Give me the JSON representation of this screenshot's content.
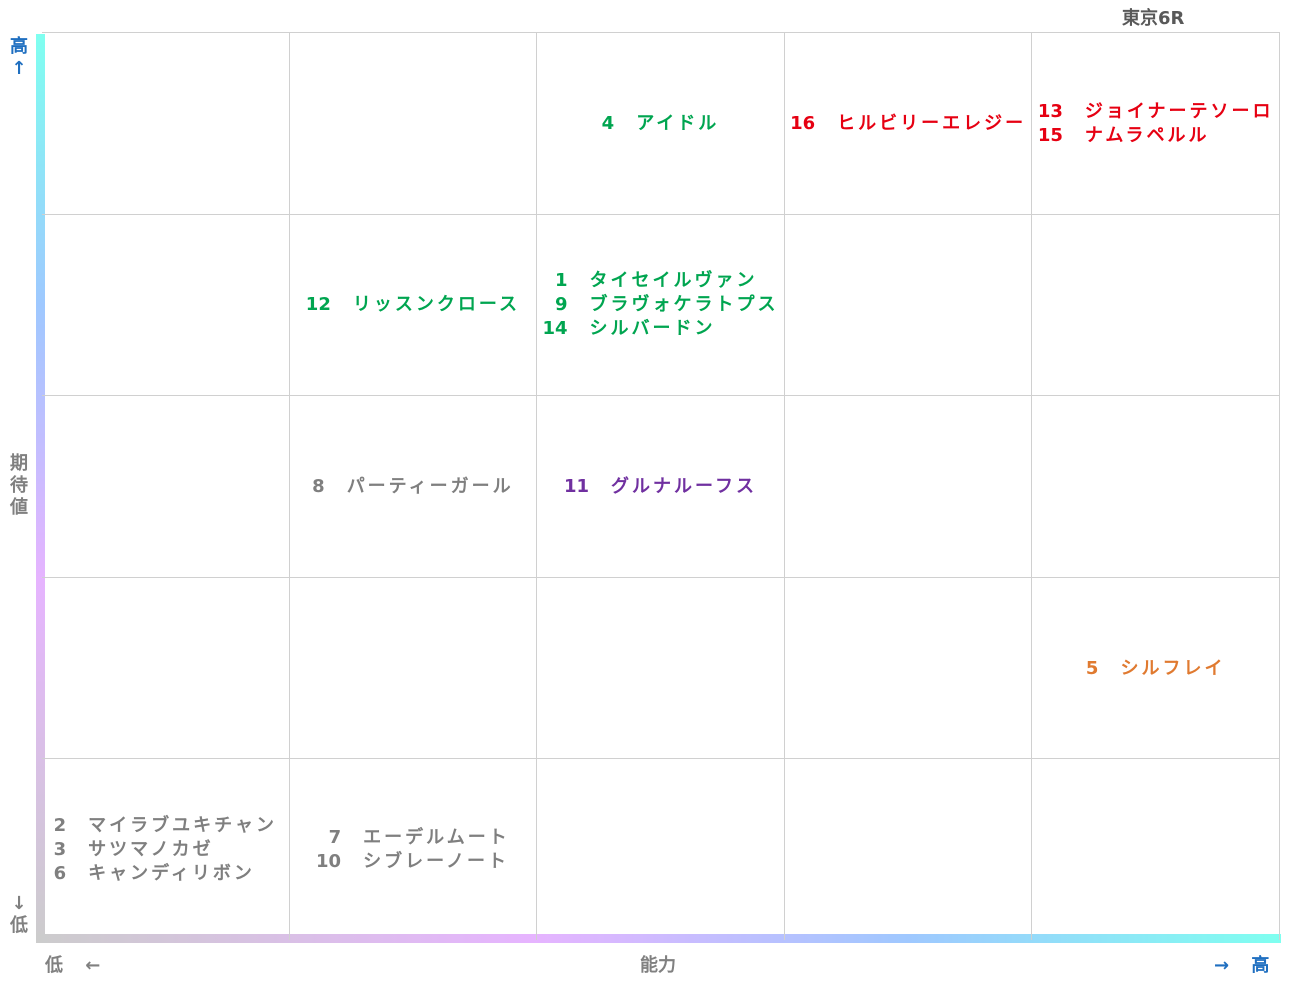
{
  "title": "東京6R",
  "y_axis": {
    "top": "高↑",
    "label": "期待値",
    "bottom": "↓低"
  },
  "x_axis": {
    "left": "低 ←",
    "label": "能力",
    "right": "→ 高"
  },
  "grid": [
    [
      {
        "entries": []
      },
      {
        "entries": []
      },
      {
        "color": "#00a550",
        "entries": [
          {
            "number": 4,
            "name": "アイドル"
          }
        ]
      },
      {
        "color": "#e60012",
        "entries": [
          {
            "number": 16,
            "name": "ヒルビリーエレジー"
          }
        ]
      },
      {
        "color": "#e60012",
        "entries": [
          {
            "number": 13,
            "name": "ジョイナーテソーロ"
          },
          {
            "number": 15,
            "name": "ナムラペルル"
          }
        ]
      }
    ],
    [
      {
        "entries": []
      },
      {
        "color": "#00a550",
        "entries": [
          {
            "number": 12,
            "name": "リッスンクロース"
          }
        ]
      },
      {
        "color": "#00a550",
        "entries": [
          {
            "number": 1,
            "name": "タイセイルヴァン"
          },
          {
            "number": 9,
            "name": "ブラヴォケラトプス"
          },
          {
            "number": 14,
            "name": "シルバードン"
          }
        ]
      },
      {
        "entries": []
      },
      {
        "entries": []
      }
    ],
    [
      {
        "entries": []
      },
      {
        "color": "#7f7f7f",
        "entries": [
          {
            "number": 8,
            "name": "パーティーガール"
          }
        ]
      },
      {
        "color": "#7030a0",
        "entries": [
          {
            "number": 11,
            "name": "グルナルーフス"
          }
        ]
      },
      {
        "entries": []
      },
      {
        "entries": []
      }
    ],
    [
      {
        "entries": []
      },
      {
        "entries": []
      },
      {
        "entries": []
      },
      {
        "entries": []
      },
      {
        "color": "#e07a30",
        "entries": [
          {
            "number": 5,
            "name": "シルフレイ"
          }
        ]
      }
    ],
    [
      {
        "color": "#7f7f7f",
        "entries": [
          {
            "number": 2,
            "name": "マイラブユキチャン"
          },
          {
            "number": 3,
            "name": "サツマノカゼ"
          },
          {
            "number": 6,
            "name": "キャンディリボン"
          }
        ]
      },
      {
        "color": "#7f7f7f",
        "entries": [
          {
            "number": 7,
            "name": "エーデルムート"
          },
          {
            "number": 10,
            "name": "シブレーノート"
          }
        ]
      },
      {
        "entries": []
      },
      {
        "entries": []
      },
      {
        "entries": []
      }
    ]
  ]
}
